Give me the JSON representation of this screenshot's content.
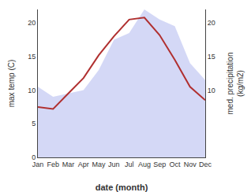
{
  "chart_data": {
    "type": "line",
    "categories": [
      "Jan",
      "Feb",
      "Mar",
      "Apr",
      "May",
      "Jun",
      "Jul",
      "Aug",
      "Sep",
      "Oct",
      "Nov",
      "Dec"
    ],
    "series": [
      {
        "type": "area",
        "axis": "y2",
        "color": "#b0b8ee",
        "values": [
          10.5,
          9.0,
          9.5,
          10.0,
          13.0,
          17.5,
          18.5,
          22.0,
          20.5,
          19.5,
          14.0,
          11.5
        ]
      },
      {
        "type": "line",
        "color": "#b03030",
        "values": [
          7.5,
          7.2,
          9.5,
          11.8,
          15.2,
          18.0,
          20.5,
          20.8,
          18.2,
          14.5,
          10.5,
          8.5
        ]
      }
    ],
    "xlabel": "date (month)",
    "ylabel": "max temp (C)",
    "y2label": "med. precipitation\n(kg/m2)",
    "ylim": [
      0,
      22
    ],
    "yticks": [
      0,
      5,
      10,
      15,
      20
    ],
    "y2lim": [
      0,
      22
    ],
    "y2ticks": [
      10,
      15,
      20
    ],
    "grid": false
  }
}
